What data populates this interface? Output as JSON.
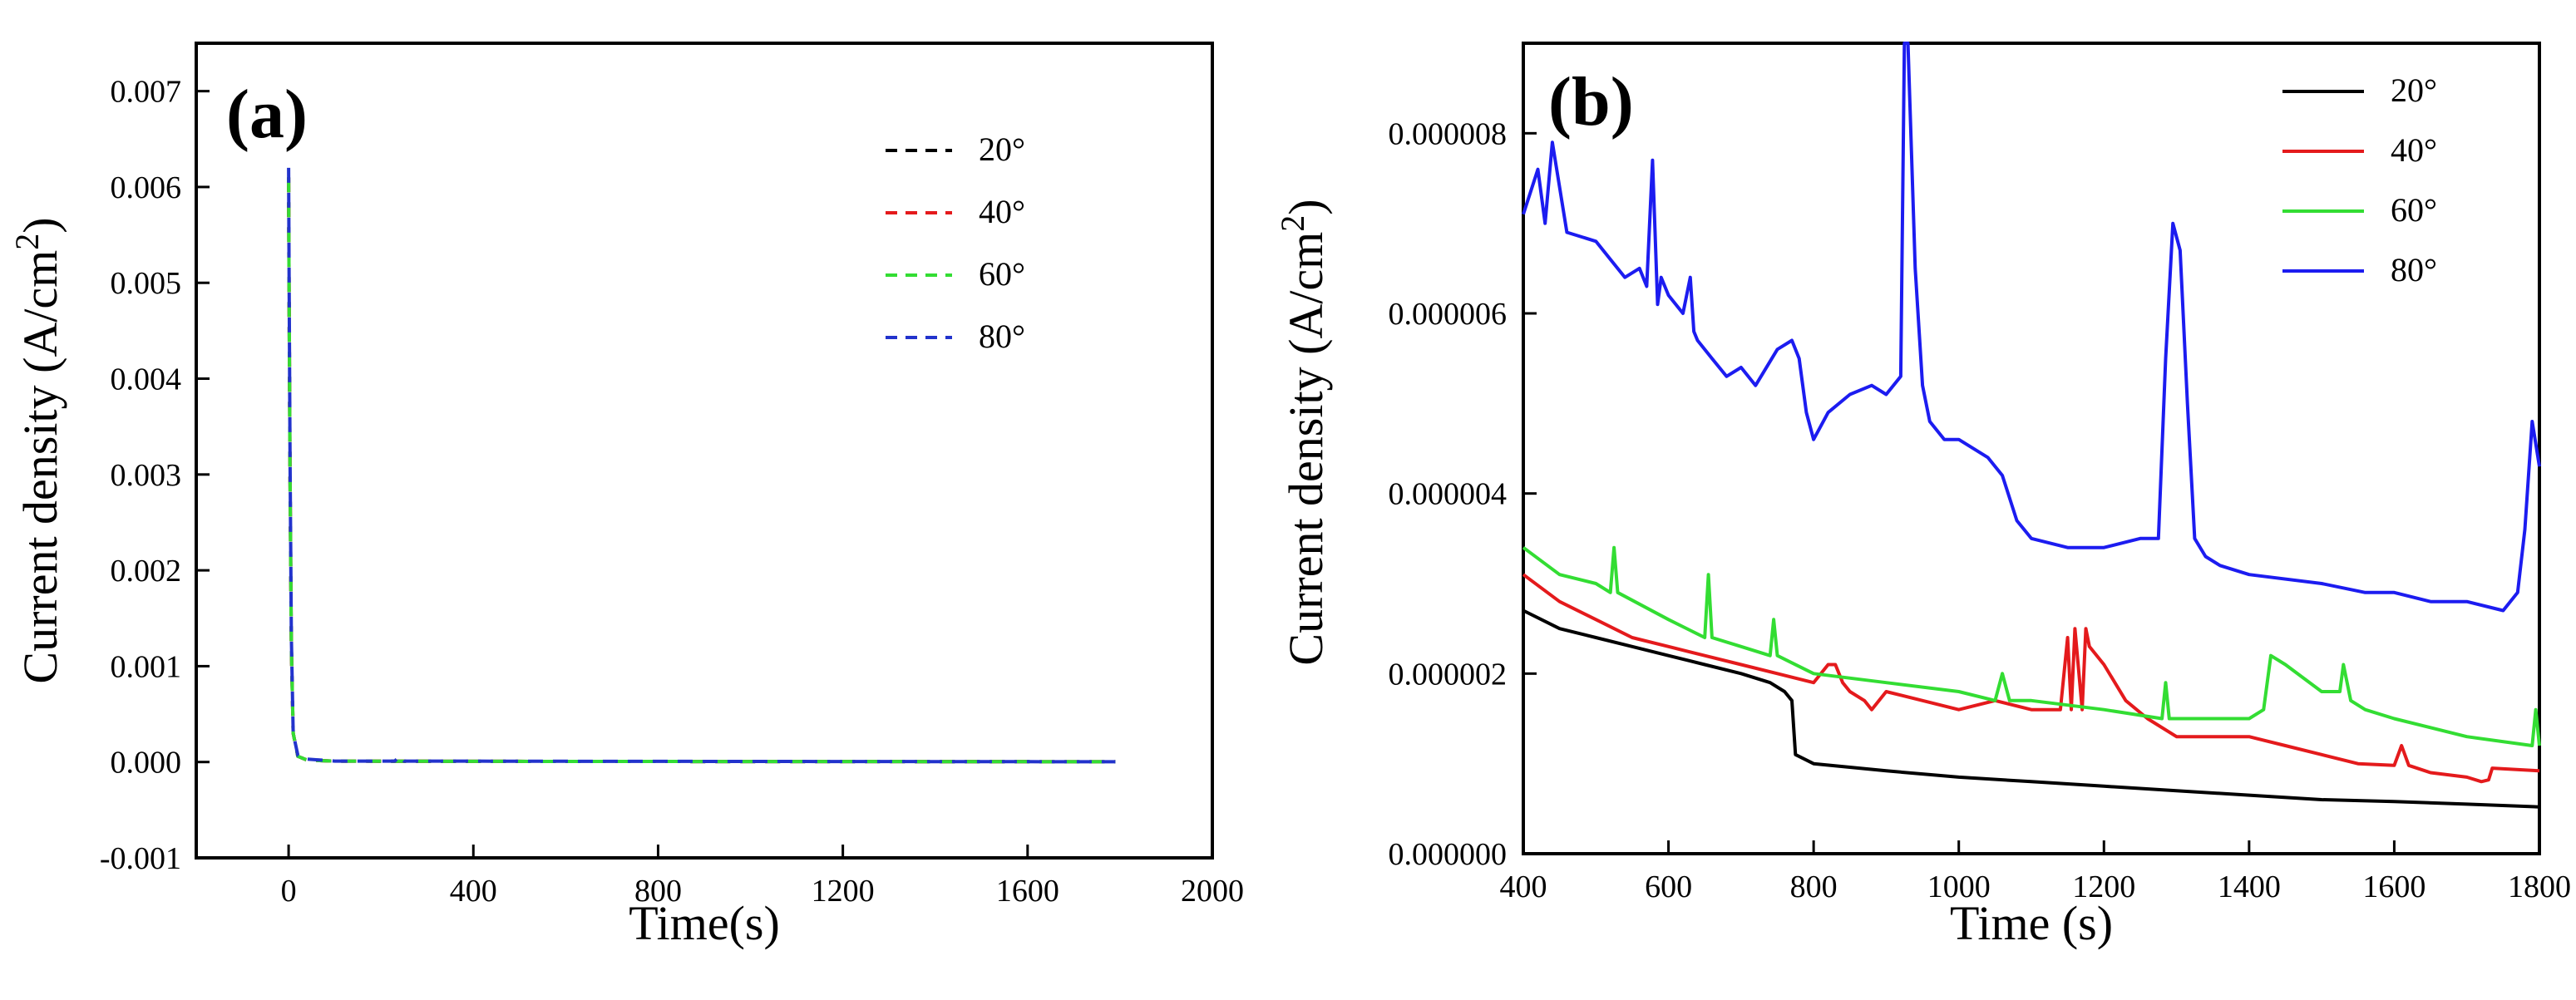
{
  "chart_data": [
    {
      "panel_label": "(a)",
      "type": "line",
      "line_style": "dashed",
      "xlabel": "Time(s)",
      "ylabel_main": "Current density (A/cm",
      "ylabel_sup": "2",
      "ylabel_close": ")",
      "xlim": [
        -200,
        2000
      ],
      "ylim": [
        -0.001,
        0.0075
      ],
      "x_ticks": [
        0,
        400,
        800,
        1200,
        1600,
        2000
      ],
      "x_tick_labels": [
        "0",
        "400",
        "800",
        "1200",
        "1600",
        "2000"
      ],
      "y_ticks": [
        -0.001,
        0,
        0.001,
        0.002,
        0.003,
        0.004,
        0.005,
        0.006,
        0.007
      ],
      "y_tick_labels": [
        "-0.001",
        "0.000",
        "0.001",
        "0.002",
        "0.003",
        "0.004",
        "0.005",
        "0.006",
        "0.007"
      ],
      "legend_position": "top-right",
      "series": [
        {
          "name": "20°",
          "color": "#000000",
          "x": [
            0,
            1,
            3,
            6,
            10,
            20,
            40,
            100,
            300,
            600,
            1000,
            1400,
            1790
          ],
          "y": [
            0.0061,
            0.005,
            0.003,
            0.0012,
            0.0003,
            6e-05,
            2e-05,
            1e-05,
            8e-06,
            6e-06,
            5e-06,
            4e-06,
            3e-06
          ]
        },
        {
          "name": "40°",
          "color": "#e41a1c",
          "x": [
            0,
            1,
            3,
            6,
            10,
            20,
            40,
            100,
            300,
            600,
            1000,
            1400,
            1790
          ],
          "y": [
            0.0061,
            0.005,
            0.003,
            0.0012,
            0.0003,
            6e-05,
            2e-05,
            1e-05,
            8e-06,
            6e-06,
            5e-06,
            4e-06,
            3e-06
          ]
        },
        {
          "name": "60°",
          "color": "#33dd33",
          "x": [
            0,
            1,
            3,
            6,
            10,
            20,
            40,
            100,
            300,
            600,
            1000,
            1400,
            1790
          ],
          "y": [
            0.0061,
            0.005,
            0.003,
            0.0012,
            0.0003,
            6e-05,
            2e-05,
            1e-05,
            8e-06,
            6e-06,
            5e-06,
            4e-06,
            3e-06
          ]
        },
        {
          "name": "80°",
          "color": "#2233cc",
          "x": [
            0,
            1,
            3,
            6,
            10,
            20,
            40,
            100,
            230,
            240,
            250,
            300,
            600,
            1000,
            1400,
            1790
          ],
          "y": [
            0.0062,
            0.0052,
            0.0032,
            0.0013,
            0.0003,
            7e-05,
            3e-05,
            1e-05,
            1e-05,
            6e-05,
            1e-05,
            1e-05,
            8e-06,
            6e-06,
            4e-06,
            3e-06
          ]
        }
      ]
    },
    {
      "panel_label": "(b)",
      "type": "line",
      "line_style": "solid",
      "xlabel": "Time (s)",
      "ylabel_main": "Current density (A/cm",
      "ylabel_sup": "2",
      "ylabel_close": ")",
      "xlim": [
        400,
        1800
      ],
      "ylim": [
        0,
        9e-06
      ],
      "x_ticks": [
        400,
        600,
        800,
        1000,
        1200,
        1400,
        1600,
        1800
      ],
      "x_tick_labels": [
        "400",
        "600",
        "800",
        "1000",
        "1200",
        "1400",
        "1600",
        "1800"
      ],
      "y_ticks": [
        0,
        2e-06,
        4e-06,
        6e-06,
        8e-06
      ],
      "y_tick_labels": [
        "0.000000",
        "0.000002",
        "0.000004",
        "0.000006",
        "0.000008"
      ],
      "legend_position": "top-right",
      "series": [
        {
          "name": "20°",
          "color": "#000000",
          "x": [
            400,
            450,
            500,
            550,
            600,
            650,
            700,
            740,
            760,
            770,
            775,
            800,
            900,
            1000,
            1100,
            1200,
            1300,
            1400,
            1500,
            1600,
            1700,
            1800
          ],
          "y": [
            2.7e-06,
            2.5e-06,
            2.4e-06,
            2.3e-06,
            2.2e-06,
            2.1e-06,
            2e-06,
            1.9e-06,
            1.8e-06,
            1.7e-06,
            1.1e-06,
            1e-06,
            9.2e-07,
            8.5e-07,
            8e-07,
            7.5e-07,
            7e-07,
            6.5e-07,
            6e-07,
            5.8e-07,
            5.5e-07,
            5.2e-07
          ]
        },
        {
          "name": "40°",
          "color": "#e41a1c",
          "x": [
            400,
            450,
            500,
            550,
            600,
            650,
            700,
            750,
            800,
            820,
            830,
            840,
            850,
            870,
            880,
            900,
            950,
            1000,
            1050,
            1100,
            1140,
            1150,
            1155,
            1160,
            1170,
            1175,
            1180,
            1200,
            1230,
            1260,
            1300,
            1350,
            1400,
            1450,
            1500,
            1550,
            1600,
            1610,
            1620,
            1650,
            1700,
            1720,
            1730,
            1735,
            1800
          ],
          "y": [
            3.1e-06,
            2.8e-06,
            2.6e-06,
            2.4e-06,
            2.3e-06,
            2.2e-06,
            2.1e-06,
            2e-06,
            1.9e-06,
            2.1e-06,
            2.1e-06,
            1.9e-06,
            1.8e-06,
            1.7e-06,
            1.6e-06,
            1.8e-06,
            1.7e-06,
            1.6e-06,
            1.7e-06,
            1.6e-06,
            1.6e-06,
            2.4e-06,
            1.6e-06,
            2.5e-06,
            1.6e-06,
            2.5e-06,
            2.3e-06,
            2.1e-06,
            1.7e-06,
            1.5e-06,
            1.3e-06,
            1.3e-06,
            1.3e-06,
            1.2e-06,
            1.1e-06,
            1e-06,
            9.8e-07,
            1.2e-06,
            9.8e-07,
            9e-07,
            8.5e-07,
            8e-07,
            8.2e-07,
            9.5e-07,
            9.2e-07
          ]
        },
        {
          "name": "60°",
          "color": "#33dd33",
          "x": [
            400,
            450,
            500,
            520,
            525,
            530,
            600,
            650,
            655,
            660,
            700,
            740,
            745,
            750,
            800,
            900,
            1000,
            1050,
            1060,
            1070,
            1100,
            1200,
            1280,
            1285,
            1290,
            1300,
            1400,
            1420,
            1430,
            1450,
            1500,
            1525,
            1530,
            1540,
            1560,
            1600,
            1700,
            1790,
            1795,
            1800
          ],
          "y": [
            3.4e-06,
            3.1e-06,
            3e-06,
            2.9e-06,
            3.4e-06,
            2.9e-06,
            2.6e-06,
            2.4e-06,
            3.1e-06,
            2.4e-06,
            2.3e-06,
            2.2e-06,
            2.6e-06,
            2.2e-06,
            2e-06,
            1.9e-06,
            1.8e-06,
            1.7e-06,
            2e-06,
            1.7e-06,
            1.7e-06,
            1.6e-06,
            1.5e-06,
            1.9e-06,
            1.5e-06,
            1.5e-06,
            1.5e-06,
            1.6e-06,
            2.2e-06,
            2.1e-06,
            1.8e-06,
            1.8e-06,
            2.1e-06,
            1.7e-06,
            1.6e-06,
            1.5e-06,
            1.3e-06,
            1.2e-06,
            1.6e-06,
            1.2e-06
          ]
        },
        {
          "name": "80°",
          "color": "#1c1cf0",
          "x": [
            400,
            420,
            430,
            440,
            460,
            500,
            520,
            540,
            560,
            570,
            578,
            585,
            590,
            600,
            620,
            630,
            635,
            640,
            660,
            680,
            700,
            720,
            750,
            770,
            780,
            790,
            800,
            820,
            850,
            880,
            900,
            920,
            925,
            930,
            940,
            950,
            960,
            980,
            1000,
            1040,
            1060,
            1080,
            1100,
            1150,
            1200,
            1250,
            1275,
            1285,
            1295,
            1305,
            1315,
            1325,
            1340,
            1360,
            1400,
            1500,
            1560,
            1600,
            1650,
            1700,
            1750,
            1770,
            1780,
            1790,
            1800
          ],
          "y": [
            7.1e-06,
            7.6e-06,
            7e-06,
            7.9e-06,
            6.9e-06,
            6.8e-06,
            6.6e-06,
            6.4e-06,
            6.5e-06,
            6.3e-06,
            7.7e-06,
            6.1e-06,
            6.4e-06,
            6.2e-06,
            6e-06,
            6.4e-06,
            5.8e-06,
            5.7e-06,
            5.5e-06,
            5.3e-06,
            5.4e-06,
            5.2e-06,
            5.6e-06,
            5.7e-06,
            5.5e-06,
            4.9e-06,
            4.6e-06,
            4.9e-06,
            5.1e-06,
            5.2e-06,
            5.1e-06,
            5.3e-06,
            9e-06,
            9e-06,
            6.5e-06,
            5.2e-06,
            4.8e-06,
            4.6e-06,
            4.6e-06,
            4.4e-06,
            4.2e-06,
            3.7e-06,
            3.5e-06,
            3.4e-06,
            3.4e-06,
            3.5e-06,
            3.5e-06,
            5.5e-06,
            7e-06,
            6.7e-06,
            5e-06,
            3.5e-06,
            3.3e-06,
            3.2e-06,
            3.1e-06,
            3e-06,
            2.9e-06,
            2.9e-06,
            2.8e-06,
            2.8e-06,
            2.7e-06,
            2.9e-06,
            3.6e-06,
            4.8e-06,
            4.3e-06
          ]
        }
      ]
    }
  ]
}
